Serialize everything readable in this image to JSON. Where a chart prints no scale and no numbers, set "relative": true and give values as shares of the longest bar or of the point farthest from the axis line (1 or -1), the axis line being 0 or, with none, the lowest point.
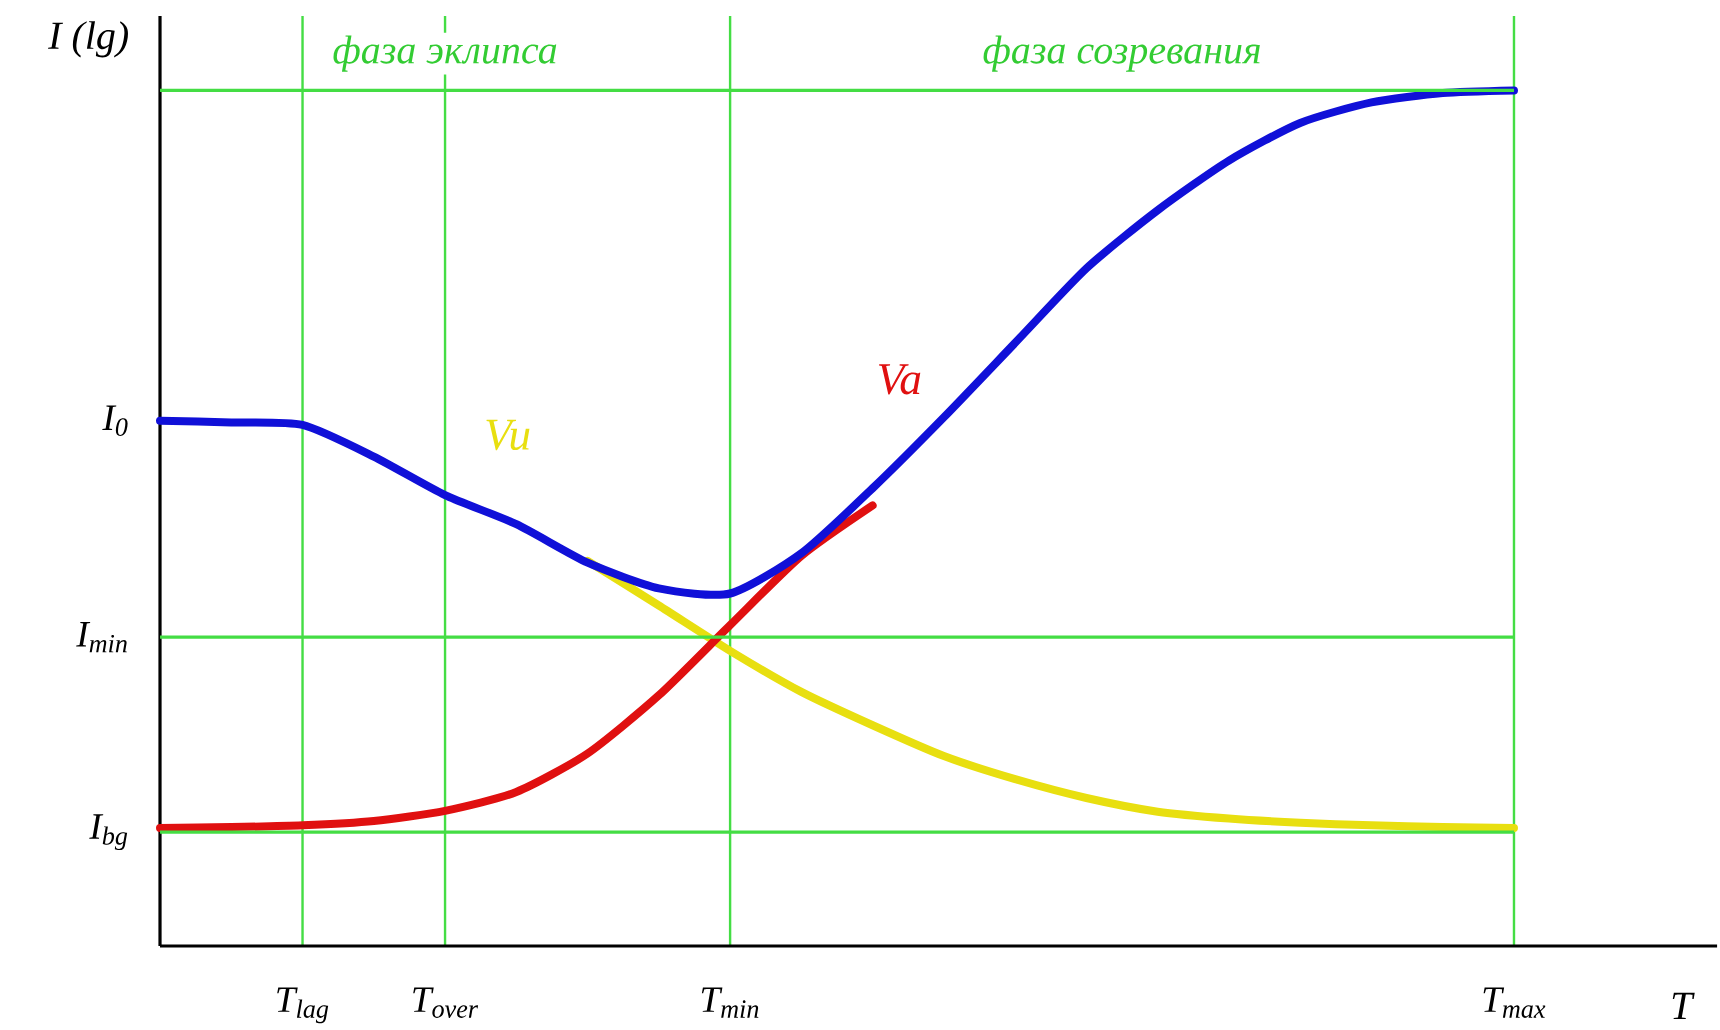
{
  "chart_data": {
    "type": "line",
    "relative": true,
    "grid": "x",
    "ylabel": "I (lg)",
    "xlabel": "T",
    "categories": [
      null,
      null,
      "T$_{lag}$",
      null,
      "T$_{over}$",
      null,
      null,
      null,
      "T$_{min}$",
      null,
      null,
      null,
      null,
      null,
      null,
      null,
      null,
      null,
      null,
      "T$_{max}$"
    ],
    "series": [
      {
        "color": "#e8df10",
        "name": "Vu",
        "values": [
          null,
          null,
          null,
          null,
          null,
          null,
          0.45,
          0.398,
          0.345,
          0.297,
          0.258,
          0.222,
          0.195,
          0.173,
          0.157,
          0.149,
          0.144,
          0.141,
          0.139,
          0.138
        ]
      },
      {
        "color": "#e01010",
        "name": "Va",
        "values": [
          0.138,
          0.139,
          0.141,
          0.146,
          0.158,
          0.18,
          0.225,
          0.293,
          0.375,
          0.456,
          0.515,
          null,
          null,
          null,
          null,
          null,
          null,
          null,
          null,
          null
        ]
      },
      {
        "color": "#1010d8",
        "values": [
          0.614,
          0.612,
          0.609,
          0.572,
          0.527,
          0.493,
          0.448,
          0.418,
          0.412,
          0.459,
          0.535,
          0.618,
          0.705,
          0.792,
          0.86,
          0.918,
          0.962,
          0.986,
          0.997,
          1.0
        ]
      }
    ],
    "ref_lines": [
      {
        "axis": "y",
        "value": 1.0,
        "color": "#44dd44"
      },
      {
        "axis": "y",
        "value": 0.361,
        "label": "I$_{min}$",
        "color": "#44dd44"
      },
      {
        "axis": "y",
        "value": 0.133,
        "label": "I$_{bg}$",
        "color": "#44dd44"
      }
    ],
    "annotations": [
      "I$_{0}$",
      "фаза эклипса",
      "фаза созревания"
    ]
  }
}
